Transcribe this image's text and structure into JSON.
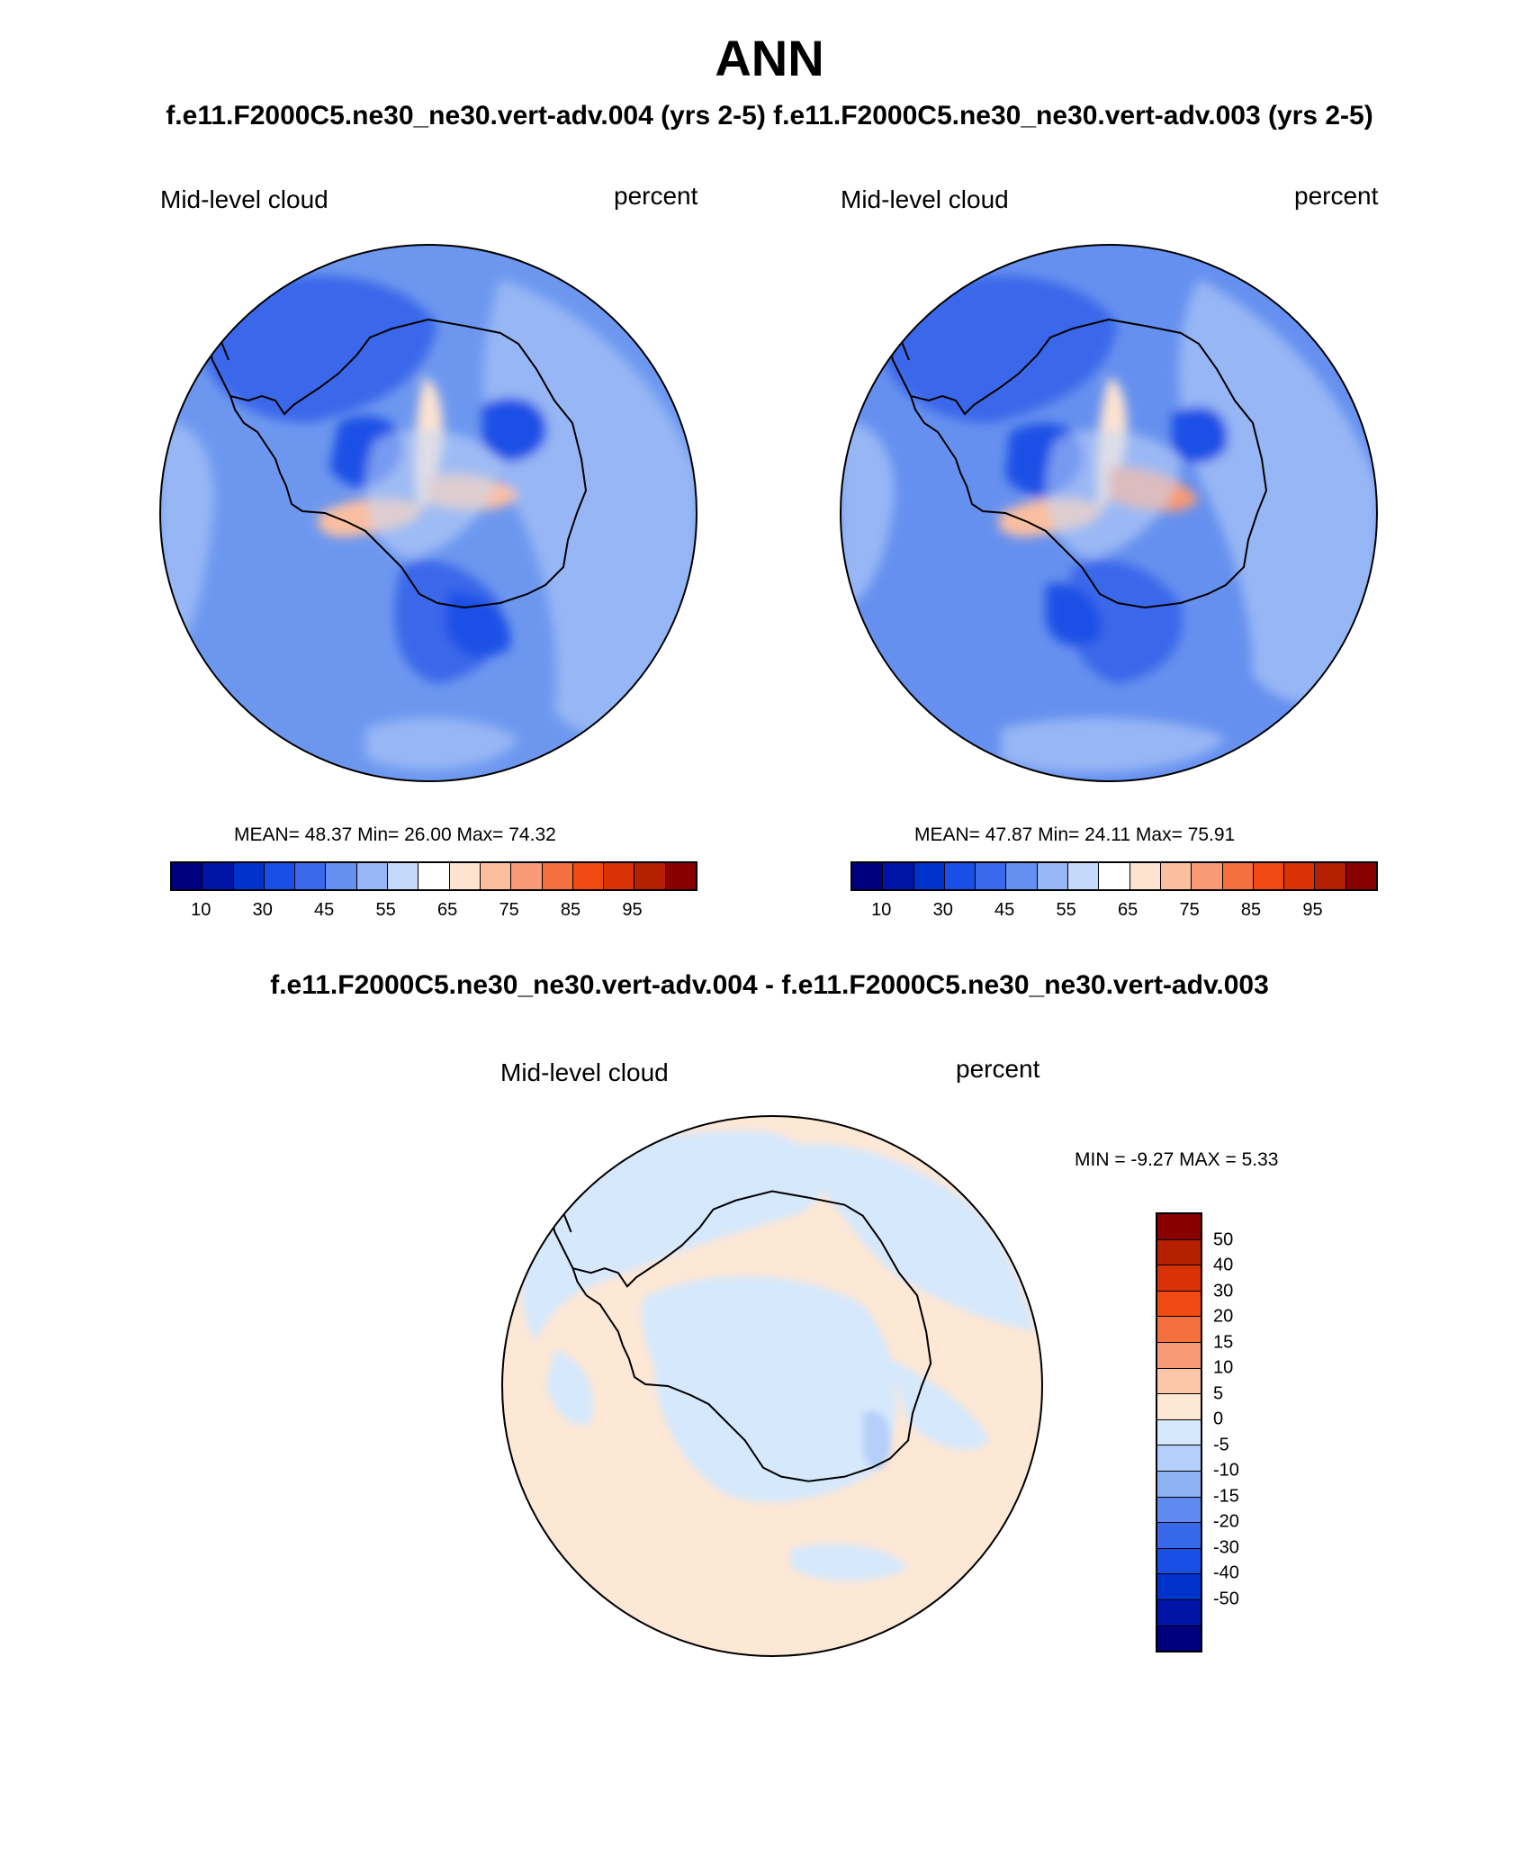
{
  "title": "ANN",
  "subtitle": "f.e11.F2000C5.ne30_ne30.vert-adv.004 (yrs 2-5)  f.e11.F2000C5.ne30_ne30.vert-adv.003 (yrs 2-5)",
  "panels": [
    {
      "variable": "Mid-level cloud",
      "units": "percent",
      "stats_text": "MEAN=  48.37  Min=  26.00  Max=  74.32"
    },
    {
      "variable": "Mid-level cloud",
      "units": "percent",
      "stats_text": "MEAN=  47.87  Min=  24.11  Max=  75.91"
    }
  ],
  "colorbar": {
    "colors": [
      "#00007f",
      "#0015a8",
      "#0033cc",
      "#1a4fe6",
      "#3a68ea",
      "#6690ef",
      "#96b6f5",
      "#c5d9fa",
      "#ffffff",
      "#fde3d0",
      "#fbbfa0",
      "#f89a75",
      "#f4703f",
      "#ee4a12",
      "#d93206",
      "#b51f02",
      "#8a0000"
    ],
    "tick_labels": [
      "10",
      "30",
      "45",
      "55",
      "65",
      "75",
      "85",
      "95"
    ]
  },
  "diff": {
    "title": "f.e11.F2000C5.ne30_ne30.vert-adv.004 - f.e11.F2000C5.ne30_ne30.vert-adv.003",
    "variable": "Mid-level cloud",
    "units": "percent",
    "stats_text": "MIN =  -9.27 MAX =   5.33",
    "colorbar": {
      "colors_top_to_bottom": [
        "#8a0000",
        "#b51f02",
        "#d93206",
        "#ee4a12",
        "#f4703f",
        "#f89a75",
        "#fbc7a8",
        "#fde7d5",
        "#d6e8fc",
        "#b4cffa",
        "#8eb1f4",
        "#5f8aef",
        "#3868ea",
        "#1a4fe6",
        "#0033cc",
        "#0015a8",
        "#00007f"
      ],
      "tick_labels_top_to_bottom": [
        "50",
        "40",
        "30",
        "20",
        "15",
        "10",
        "5",
        "0",
        "-5",
        "-10",
        "-15",
        "-20",
        "-30",
        "-40",
        "-50"
      ]
    }
  },
  "colors": {
    "ocean_panel1": "#6d97ef",
    "ocean_panel2": "#6690ef",
    "diff_positive": "#fde7d5",
    "diff_negative": "#d6e8fc",
    "coastline": "#000000"
  }
}
